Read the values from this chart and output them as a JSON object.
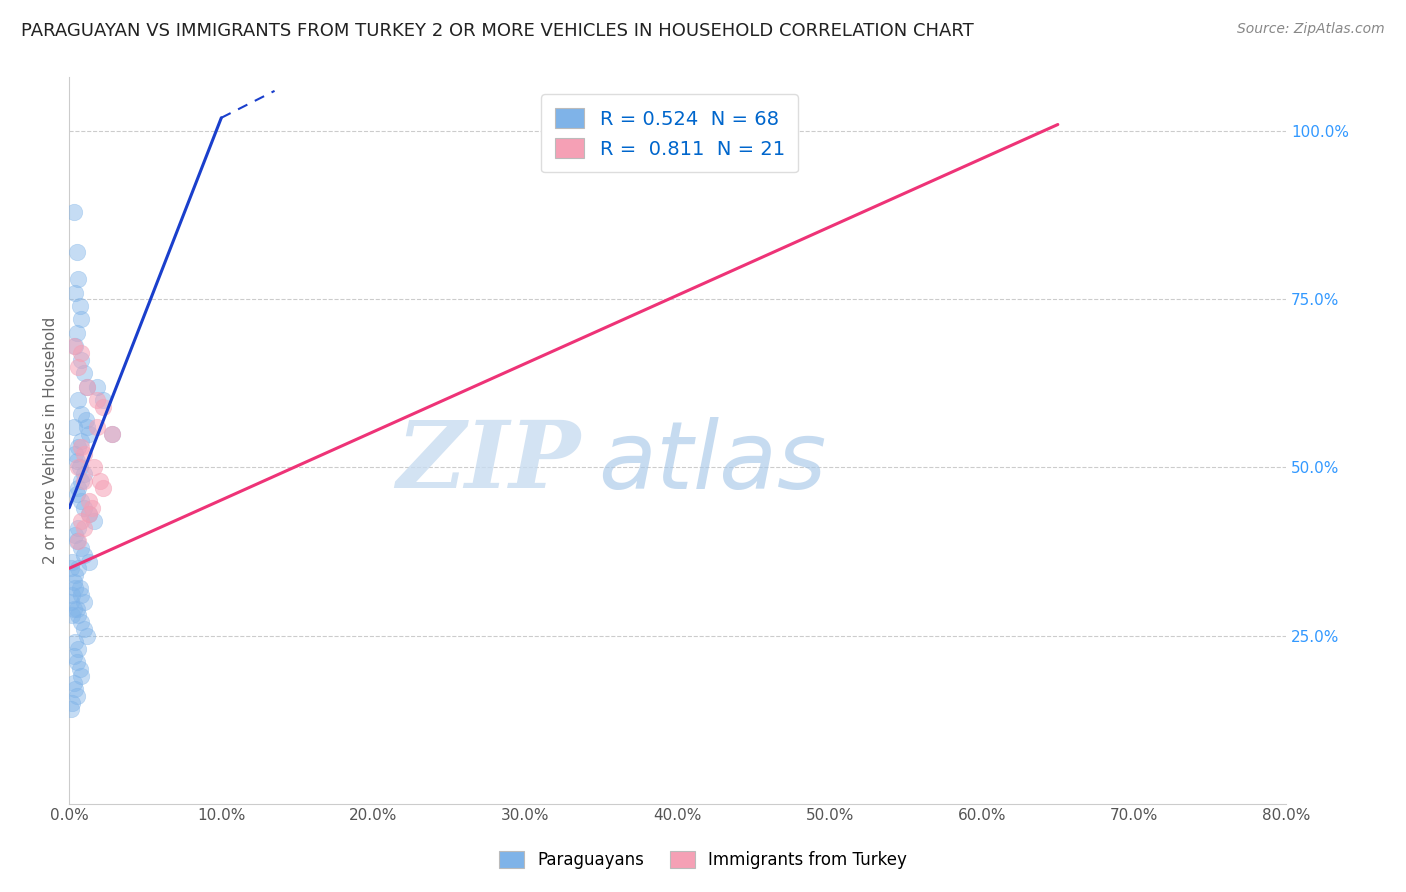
{
  "title": "PARAGUAYAN VS IMMIGRANTS FROM TURKEY 2 OR MORE VEHICLES IN HOUSEHOLD CORRELATION CHART",
  "source": "Source: ZipAtlas.com",
  "ylabel": "2 or more Vehicles in Household",
  "xlabel_ticks": [
    "0.0%",
    "10.0%",
    "20.0%",
    "30.0%",
    "40.0%",
    "50.0%",
    "60.0%",
    "70.0%",
    "80.0%"
  ],
  "xmin": 0.0,
  "xmax": 0.8,
  "ymin": 0.0,
  "ymax": 1.08,
  "blue_scatter": [
    [
      0.003,
      0.88
    ],
    [
      0.005,
      0.82
    ],
    [
      0.006,
      0.78
    ],
    [
      0.004,
      0.76
    ],
    [
      0.007,
      0.74
    ],
    [
      0.008,
      0.72
    ],
    [
      0.005,
      0.7
    ],
    [
      0.004,
      0.68
    ],
    [
      0.008,
      0.66
    ],
    [
      0.01,
      0.64
    ],
    [
      0.012,
      0.62
    ],
    [
      0.006,
      0.6
    ],
    [
      0.008,
      0.58
    ],
    [
      0.011,
      0.57
    ],
    [
      0.012,
      0.56
    ],
    [
      0.013,
      0.55
    ],
    [
      0.008,
      0.54
    ],
    [
      0.006,
      0.53
    ],
    [
      0.004,
      0.52
    ],
    [
      0.005,
      0.51
    ],
    [
      0.007,
      0.5
    ],
    [
      0.01,
      0.49
    ],
    [
      0.008,
      0.48
    ],
    [
      0.006,
      0.47
    ],
    [
      0.005,
      0.46
    ],
    [
      0.008,
      0.45
    ],
    [
      0.01,
      0.44
    ],
    [
      0.013,
      0.43
    ],
    [
      0.016,
      0.42
    ],
    [
      0.006,
      0.41
    ],
    [
      0.004,
      0.4
    ],
    [
      0.005,
      0.39
    ],
    [
      0.008,
      0.38
    ],
    [
      0.01,
      0.37
    ],
    [
      0.013,
      0.36
    ],
    [
      0.006,
      0.35
    ],
    [
      0.004,
      0.34
    ],
    [
      0.003,
      0.33
    ],
    [
      0.007,
      0.32
    ],
    [
      0.008,
      0.31
    ],
    [
      0.01,
      0.3
    ],
    [
      0.005,
      0.29
    ],
    [
      0.006,
      0.28
    ],
    [
      0.008,
      0.27
    ],
    [
      0.01,
      0.26
    ],
    [
      0.012,
      0.25
    ],
    [
      0.004,
      0.24
    ],
    [
      0.006,
      0.23
    ],
    [
      0.003,
      0.22
    ],
    [
      0.005,
      0.21
    ],
    [
      0.007,
      0.2
    ],
    [
      0.008,
      0.19
    ],
    [
      0.003,
      0.18
    ],
    [
      0.004,
      0.17
    ],
    [
      0.005,
      0.16
    ],
    [
      0.002,
      0.31
    ],
    [
      0.001,
      0.3
    ],
    [
      0.003,
      0.29
    ],
    [
      0.002,
      0.28
    ],
    [
      0.002,
      0.15
    ],
    [
      0.001,
      0.14
    ],
    [
      0.002,
      0.36
    ],
    [
      0.001,
      0.35
    ],
    [
      0.004,
      0.32
    ],
    [
      0.003,
      0.56
    ],
    [
      0.018,
      0.62
    ],
    [
      0.022,
      0.6
    ],
    [
      0.028,
      0.55
    ]
  ],
  "pink_scatter": [
    [
      0.003,
      0.68
    ],
    [
      0.008,
      0.67
    ],
    [
      0.006,
      0.65
    ],
    [
      0.012,
      0.62
    ],
    [
      0.018,
      0.6
    ],
    [
      0.022,
      0.59
    ],
    [
      0.028,
      0.55
    ],
    [
      0.01,
      0.52
    ],
    [
      0.016,
      0.5
    ],
    [
      0.02,
      0.48
    ],
    [
      0.013,
      0.45
    ],
    [
      0.006,
      0.5
    ],
    [
      0.008,
      0.53
    ],
    [
      0.018,
      0.56
    ],
    [
      0.01,
      0.48
    ],
    [
      0.013,
      0.43
    ],
    [
      0.008,
      0.42
    ],
    [
      0.022,
      0.47
    ],
    [
      0.015,
      0.44
    ],
    [
      0.01,
      0.41
    ],
    [
      0.006,
      0.39
    ]
  ],
  "blue_line_x": [
    0.0,
    0.1
  ],
  "blue_line_y": [
    0.44,
    1.02
  ],
  "pink_line_x": [
    0.0,
    0.65
  ],
  "pink_line_y": [
    0.35,
    1.01
  ],
  "blue_color": "#7FB3E8",
  "pink_color": "#F5A0B5",
  "blue_line_color": "#1A3FCC",
  "pink_line_color": "#EE3377",
  "blue_line_dash": [
    8,
    4
  ],
  "legend_text_color": "#0066CC",
  "title_fontsize": 13,
  "watermark_zip": "ZIP",
  "watermark_atlas": "atlas",
  "R_blue": "0.524",
  "N_blue": "68",
  "R_pink": "0.811",
  "N_pink": "21"
}
